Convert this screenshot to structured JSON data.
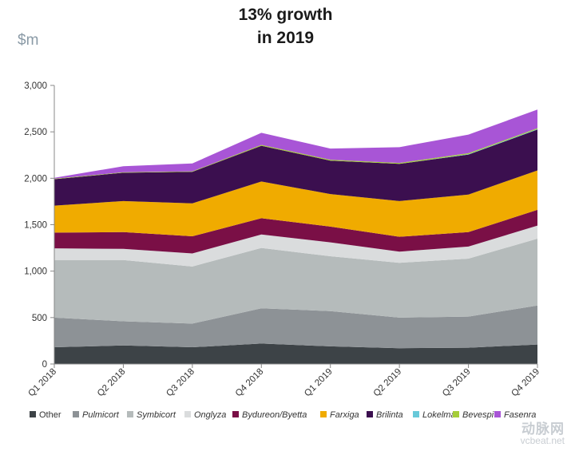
{
  "chart_data": {
    "type": "area",
    "stacked": true,
    "title_lines": [
      "13% growth",
      "in 2019"
    ],
    "ylabel": "$m",
    "xlabel": "",
    "ylim": [
      0,
      3000
    ],
    "yticks": [
      0,
      500,
      1000,
      1500,
      2000,
      2500,
      3000
    ],
    "ytick_labels": [
      "0",
      "500",
      "1,000",
      "1,500",
      "2,000",
      "2,500",
      "3,000"
    ],
    "categories": [
      "Q1 2018",
      "Q2 2018",
      "Q3 2018",
      "Q4 2018",
      "Q1 2019",
      "Q2 2019",
      "Q3 2019",
      "Q4 2019"
    ],
    "legend_position": "bottom",
    "series": [
      {
        "name": "Other",
        "color": "#3d4347",
        "italic": false,
        "values": [
          180,
          200,
          180,
          220,
          190,
          170,
          175,
          210
        ]
      },
      {
        "name": "Pulmicort",
        "color": "#8d9296",
        "italic": true,
        "values": [
          320,
          260,
          255,
          380,
          380,
          330,
          335,
          420
        ]
      },
      {
        "name": "Symbicort",
        "color": "#b5bbbb",
        "italic": true,
        "values": [
          620,
          660,
          615,
          650,
          590,
          590,
          625,
          720
        ]
      },
      {
        "name": "Onglyza",
        "color": "#dadcdd",
        "italic": true,
        "values": [
          125,
          120,
          140,
          145,
          150,
          120,
          130,
          140
        ]
      },
      {
        "name": "Bydureon/Byetta",
        "color": "#7a0f46",
        "italic": true,
        "values": [
          170,
          180,
          185,
          175,
          170,
          160,
          155,
          170
        ]
      },
      {
        "name": "Farxiga",
        "color": "#f0ab00",
        "italic": true,
        "values": [
          290,
          335,
          355,
          395,
          350,
          385,
          405,
          425
        ]
      },
      {
        "name": "Brilinta",
        "color": "#3b0f4f",
        "italic": true,
        "values": [
          285,
          305,
          340,
          385,
          360,
          400,
          430,
          440
        ]
      },
      {
        "name": "Lokelma",
        "color": "#68c9d9",
        "italic": true,
        "values": [
          0,
          0,
          0,
          0,
          0,
          0,
          5,
          5
        ]
      },
      {
        "name": "Bevespi",
        "color": "#a5cd39",
        "italic": true,
        "values": [
          5,
          5,
          5,
          10,
          10,
          10,
          10,
          10
        ]
      },
      {
        "name": "Fasenra",
        "color": "#a855d6",
        "italic": true,
        "values": [
          10,
          65,
          85,
          130,
          120,
          170,
          200,
          200
        ]
      }
    ]
  },
  "watermark": {
    "line1": "动脉网",
    "line2": "vcbeat.net"
  }
}
